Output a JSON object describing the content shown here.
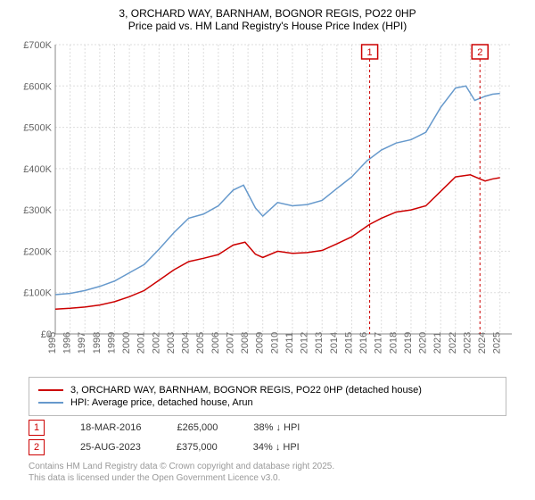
{
  "title_line1": "3, ORCHARD WAY, BARNHAM, BOGNOR REGIS, PO22 0HP",
  "title_line2": "Price paid vs. HM Land Registry's House Price Index (HPI)",
  "chart": {
    "type": "line",
    "background_color": "#ffffff",
    "grid_color": "#dddddd",
    "axis_color": "#888888",
    "x_range": [
      1995,
      2025.8
    ],
    "y_range": [
      0,
      700000
    ],
    "y_ticks": [
      0,
      100000,
      200000,
      300000,
      400000,
      500000,
      600000,
      700000
    ],
    "y_tick_labels": [
      "£0",
      "£100K",
      "£200K",
      "£300K",
      "£400K",
      "£500K",
      "£600K",
      "£700K"
    ],
    "x_ticks": [
      1995,
      1996,
      1997,
      1998,
      1999,
      2000,
      2001,
      2002,
      2003,
      2004,
      2005,
      2006,
      2007,
      2008,
      2009,
      2010,
      2011,
      2012,
      2013,
      2014,
      2015,
      2016,
      2017,
      2018,
      2019,
      2020,
      2021,
      2022,
      2023,
      2024,
      2025
    ],
    "series": [
      {
        "name": "property",
        "color": "#cc0000",
        "width": 2,
        "data": [
          [
            1995,
            60000
          ],
          [
            1996,
            62000
          ],
          [
            1997,
            65000
          ],
          [
            1998,
            70000
          ],
          [
            1999,
            78000
          ],
          [
            2000,
            90000
          ],
          [
            2001,
            105000
          ],
          [
            2002,
            130000
          ],
          [
            2003,
            155000
          ],
          [
            2004,
            175000
          ],
          [
            2005,
            183000
          ],
          [
            2006,
            192000
          ],
          [
            2007,
            215000
          ],
          [
            2007.8,
            222000
          ],
          [
            2008.5,
            193000
          ],
          [
            2009,
            185000
          ],
          [
            2010,
            200000
          ],
          [
            2011,
            195000
          ],
          [
            2012,
            197000
          ],
          [
            2013,
            202000
          ],
          [
            2014,
            218000
          ],
          [
            2015,
            235000
          ],
          [
            2016,
            260000
          ],
          [
            2016.2,
            265000
          ],
          [
            2017,
            280000
          ],
          [
            2018,
            295000
          ],
          [
            2019,
            300000
          ],
          [
            2020,
            310000
          ],
          [
            2021,
            345000
          ],
          [
            2022,
            380000
          ],
          [
            2023,
            385000
          ],
          [
            2023.65,
            375000
          ],
          [
            2024,
            370000
          ],
          [
            2024.5,
            375000
          ],
          [
            2025,
            378000
          ]
        ]
      },
      {
        "name": "hpi",
        "color": "#6699cc",
        "width": 1.5,
        "data": [
          [
            1995,
            95000
          ],
          [
            1996,
            98000
          ],
          [
            1997,
            105000
          ],
          [
            1998,
            115000
          ],
          [
            1999,
            128000
          ],
          [
            2000,
            148000
          ],
          [
            2001,
            168000
          ],
          [
            2002,
            205000
          ],
          [
            2003,
            245000
          ],
          [
            2004,
            280000
          ],
          [
            2005,
            290000
          ],
          [
            2006,
            310000
          ],
          [
            2007,
            348000
          ],
          [
            2007.7,
            360000
          ],
          [
            2008.5,
            305000
          ],
          [
            2009,
            285000
          ],
          [
            2010,
            318000
          ],
          [
            2011,
            310000
          ],
          [
            2012,
            313000
          ],
          [
            2013,
            323000
          ],
          [
            2014,
            352000
          ],
          [
            2015,
            380000
          ],
          [
            2016,
            418000
          ],
          [
            2017,
            445000
          ],
          [
            2018,
            462000
          ],
          [
            2019,
            470000
          ],
          [
            2020,
            488000
          ],
          [
            2021,
            548000
          ],
          [
            2022,
            595000
          ],
          [
            2022.7,
            600000
          ],
          [
            2023.3,
            565000
          ],
          [
            2024,
            575000
          ],
          [
            2024.5,
            580000
          ],
          [
            2025,
            582000
          ]
        ]
      }
    ],
    "sale_markers": [
      {
        "num": "1",
        "x": 2016.21,
        "color": "#cc0000"
      },
      {
        "num": "2",
        "x": 2023.65,
        "color": "#cc0000"
      }
    ]
  },
  "legend": {
    "items": [
      {
        "color": "#cc0000",
        "width": 2,
        "label": "3, ORCHARD WAY, BARNHAM, BOGNOR REGIS, PO22 0HP (detached house)"
      },
      {
        "color": "#6699cc",
        "width": 1.5,
        "label": "HPI: Average price, detached house, Arun"
      }
    ]
  },
  "sales": [
    {
      "num": "1",
      "color": "#cc0000",
      "date": "18-MAR-2016",
      "price": "£265,000",
      "delta": "38% ↓ HPI"
    },
    {
      "num": "2",
      "color": "#cc0000",
      "date": "25-AUG-2023",
      "price": "£375,000",
      "delta": "34% ↓ HPI"
    }
  ],
  "footer_line1": "Contains HM Land Registry data © Crown copyright and database right 2025.",
  "footer_line2": "This data is licensed under the Open Government Licence v3.0."
}
